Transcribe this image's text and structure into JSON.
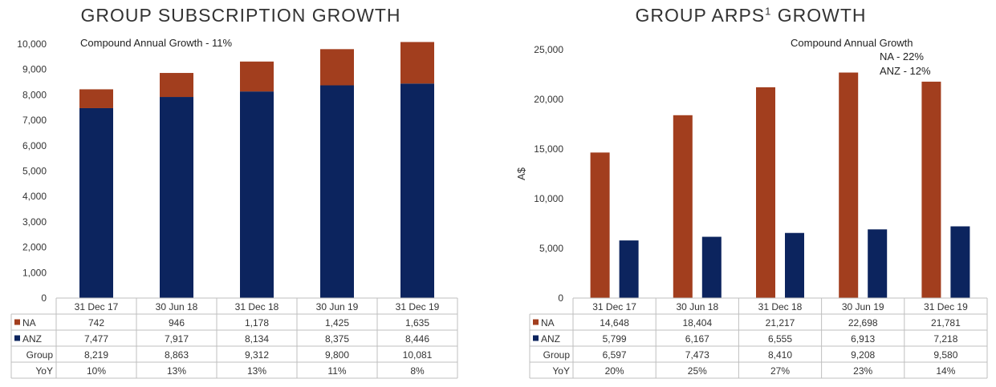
{
  "colors": {
    "NA": "#a23e1e",
    "ANZ": "#0c245e",
    "grid": "#cfcfcf",
    "axis": "#bfbfbf"
  },
  "chart_data": [
    {
      "type": "bar",
      "stacked": true,
      "title": "GROUP SUBSCRIPTION GROWTH",
      "annotation": [
        "Compound Annual Growth - 11%"
      ],
      "ylabel": "",
      "ylim": [
        0,
        10000
      ],
      "yticks": [
        "0",
        "1,000",
        "2,000",
        "3,000",
        "4,000",
        "5,000",
        "6,000",
        "7,000",
        "8,000",
        "9,000",
        "10,000"
      ],
      "categories": [
        "31 Dec 17",
        "30 Jun 18",
        "31 Dec 18",
        "30 Jun 19",
        "31 Dec 19"
      ],
      "series": [
        {
          "name": "ANZ",
          "values": [
            7477,
            7917,
            8134,
            8375,
            8446
          ]
        },
        {
          "name": "NA",
          "values": [
            742,
            946,
            1178,
            1425,
            1635
          ]
        }
      ],
      "table": [
        {
          "label": "NA",
          "marker": "NA",
          "values": [
            "742",
            "946",
            "1,178",
            "1,425",
            "1,635"
          ]
        },
        {
          "label": "ANZ",
          "marker": "ANZ",
          "values": [
            "7,477",
            "7,917",
            "8,134",
            "8,375",
            "8,446"
          ]
        },
        {
          "label": "Group",
          "marker": "",
          "values": [
            "8,219",
            "8,863",
            "9,312",
            "9,800",
            "10,081"
          ]
        },
        {
          "label": "YoY",
          "marker": "",
          "values": [
            "10%",
            "13%",
            "13%",
            "11%",
            "8%"
          ]
        }
      ]
    },
    {
      "type": "bar",
      "stacked": false,
      "title": "GROUP ARPS",
      "title_sup": "1",
      "title_suffix": " GROWTH",
      "annotation": [
        "Compound Annual Growth",
        "NA - 22%",
        "ANZ - 12%"
      ],
      "ylabel": "A$",
      "ylim": [
        0,
        25000
      ],
      "yticks": [
        "0",
        "5,000",
        "10,000",
        "15,000",
        "20,000",
        "25,000"
      ],
      "categories": [
        "31 Dec 17",
        "30 Jun 18",
        "31 Dec 18",
        "30 Jun 19",
        "31 Dec 19"
      ],
      "series": [
        {
          "name": "NA",
          "values": [
            14648,
            18404,
            21217,
            22698,
            21781
          ]
        },
        {
          "name": "ANZ",
          "values": [
            5799,
            6167,
            6555,
            6913,
            7218
          ]
        }
      ],
      "table": [
        {
          "label": "NA",
          "marker": "NA",
          "values": [
            "14,648",
            "18,404",
            "21,217",
            "22,698",
            "21,781"
          ]
        },
        {
          "label": "ANZ",
          "marker": "ANZ",
          "values": [
            "5,799",
            "6,167",
            "6,555",
            "6,913",
            "7,218"
          ]
        },
        {
          "label": "Group",
          "marker": "",
          "values": [
            "6,597",
            "7,473",
            "8,410",
            "9,208",
            "9,580"
          ]
        },
        {
          "label": "YoY",
          "marker": "",
          "values": [
            "20%",
            "25%",
            "27%",
            "23%",
            "14%"
          ]
        }
      ]
    }
  ]
}
